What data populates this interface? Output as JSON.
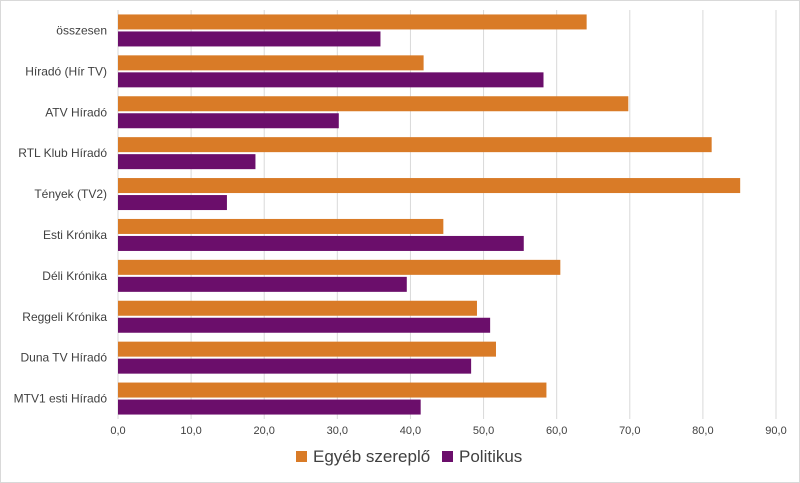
{
  "chart_data": {
    "type": "bar",
    "orientation": "horizontal",
    "categories": [
      "összesen",
      "Híradó (Hír TV)",
      "ATV Híradó",
      "RTL Klub Híradó",
      "Tények (TV2)",
      "Esti Krónika",
      "Déli Krónika",
      "Reggeli Krónika",
      "Duna TV Híradó",
      "MTV1 esti Híradó"
    ],
    "series": [
      {
        "name": "Egyéb szereplő",
        "color": "#d97b27",
        "values": [
          64.1,
          41.8,
          69.8,
          81.2,
          85.1,
          44.5,
          60.5,
          49.1,
          51.7,
          58.6
        ]
      },
      {
        "name": "Politikus",
        "color": "#6b0e6b",
        "values": [
          35.9,
          58.2,
          30.2,
          18.8,
          14.9,
          55.5,
          39.5,
          50.9,
          48.3,
          41.4
        ]
      }
    ],
    "xlim": [
      0,
      90
    ],
    "xticks": [
      "0,0",
      "10,0",
      "20,0",
      "30,0",
      "40,0",
      "50,0",
      "60,0",
      "70,0",
      "80,0",
      "90,0"
    ],
    "grid": true,
    "legend_position": "bottom"
  }
}
